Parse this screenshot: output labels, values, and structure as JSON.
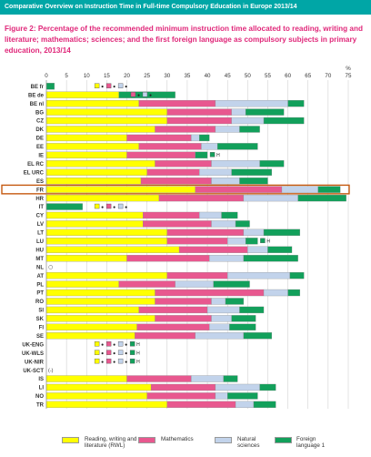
{
  "header": {
    "text": "Comparative Overview on Instruction Time in Full-time Compulsory Education in Europe 2013/14"
  },
  "title": "Figure 2: Percentage of the recommended minimum instruction time allocated to reading, writing and literature; mathematics; sciences; and the first foreign language as compulsory subjects in primary education, 2013/14",
  "chart_data": {
    "type": "bar",
    "stacked": true,
    "orientation": "horizontal",
    "x_unit": "%",
    "xlim": [
      0,
      75
    ],
    "x_ticks": [
      0,
      5,
      10,
      15,
      20,
      25,
      30,
      35,
      40,
      45,
      50,
      55,
      60,
      65,
      70,
      75
    ],
    "grid": true,
    "legend_position": "bottom",
    "series_names": [
      "Reading, writing and literature (RWL)",
      "Mathematics",
      "Natural sciences",
      "Foreign language 1"
    ],
    "colors": [
      "#ffff00",
      "#e8588f",
      "#c2d3eb",
      "#12a05b"
    ],
    "highlight": "FR",
    "rows": [
      {
        "country": "BE fr",
        "values": [
          0,
          0,
          0,
          2
        ],
        "note": ""
      },
      {
        "country": "BE de",
        "values": [
          18,
          0,
          0,
          14
        ],
        "note": "flex"
      },
      {
        "country": "BE nl",
        "values": [
          23,
          19,
          18,
          4
        ],
        "note": ""
      },
      {
        "country": "BG",
        "values": [
          30,
          16,
          3.5,
          9.5
        ],
        "note": ""
      },
      {
        "country": "CZ",
        "values": [
          30,
          16,
          8,
          10
        ],
        "note": ""
      },
      {
        "country": "DK",
        "values": [
          27,
          15,
          6,
          5
        ],
        "note": ""
      },
      {
        "country": "DE",
        "values": [
          20,
          16,
          2,
          2.5
        ],
        "note": ""
      },
      {
        "country": "EE",
        "values": [
          23,
          15.5,
          4,
          10
        ],
        "note": ""
      },
      {
        "country": "IE",
        "values": [
          20,
          17,
          0,
          3
        ],
        "note": "flex2"
      },
      {
        "country": "EL RC",
        "values": [
          27,
          14,
          12,
          6
        ],
        "note": ""
      },
      {
        "country": "EL URC",
        "values": [
          25,
          13,
          8,
          10
        ],
        "note": ""
      },
      {
        "country": "ES",
        "values": [
          23.5,
          17.5,
          7,
          7
        ],
        "note": ""
      },
      {
        "country": "FR",
        "values": [
          37,
          21.5,
          9,
          5.5
        ],
        "note": ""
      },
      {
        "country": "HR",
        "values": [
          28,
          21,
          13.5,
          12
        ],
        "note": ""
      },
      {
        "country": "IT",
        "values": [
          0,
          0,
          0,
          9
        ],
        "note": "flex"
      },
      {
        "country": "CY",
        "values": [
          24,
          14,
          5.5,
          4
        ],
        "note": ""
      },
      {
        "country": "LV",
        "values": [
          24,
          17,
          6,
          3.5
        ],
        "note": ""
      },
      {
        "country": "LT",
        "values": [
          30,
          19,
          5,
          9
        ],
        "note": ""
      },
      {
        "country": "LU",
        "values": [
          30,
          15,
          4.5,
          3
        ],
        "note": "flex2"
      },
      {
        "country": "HU",
        "values": [
          33,
          17,
          5,
          6
        ],
        "note": ""
      },
      {
        "country": "MT",
        "values": [
          20,
          20.5,
          8.5,
          13.5
        ],
        "note": ""
      },
      {
        "country": "NL",
        "values": [
          0,
          0,
          0,
          0
        ],
        "note": "circle"
      },
      {
        "country": "AT",
        "values": [
          30,
          15,
          15.5,
          3.5
        ],
        "note": ""
      },
      {
        "country": "PL",
        "values": [
          18,
          14,
          9.5,
          9
        ],
        "note": ""
      },
      {
        "country": "PT",
        "values": [
          27,
          27,
          6,
          3
        ],
        "note": ""
      },
      {
        "country": "RO",
        "values": [
          27,
          14,
          3.5,
          4.5
        ],
        "note": ""
      },
      {
        "country": "SI",
        "values": [
          23,
          17,
          8,
          6
        ],
        "note": ""
      },
      {
        "country": "SK",
        "values": [
          27,
          14,
          5,
          6
        ],
        "note": ""
      },
      {
        "country": "FI",
        "values": [
          22.5,
          18,
          5,
          6.5
        ],
        "note": ""
      },
      {
        "country": "SE",
        "values": [
          22,
          15,
          12,
          7
        ],
        "note": ""
      },
      {
        "country": "UK-ENG",
        "values": [
          0,
          0,
          0,
          0
        ],
        "note": "flex3"
      },
      {
        "country": "UK-WLS",
        "values": [
          0,
          0,
          0,
          0
        ],
        "note": "flex3"
      },
      {
        "country": "UK-NIR",
        "values": [
          0,
          0,
          0,
          0
        ],
        "note": "flex3"
      },
      {
        "country": "UK-SCT",
        "values": [
          0,
          0,
          0,
          0
        ],
        "note": "minus"
      },
      {
        "country": "IS",
        "values": [
          20,
          16,
          8,
          3.5
        ],
        "note": ""
      },
      {
        "country": "LI",
        "values": [
          26,
          16,
          11,
          4
        ],
        "note": ""
      },
      {
        "country": "NO",
        "values": [
          25,
          17,
          3,
          7.5
        ],
        "note": ""
      },
      {
        "country": "TR",
        "values": [
          30,
          17,
          4.5,
          5.5
        ],
        "note": ""
      }
    ]
  },
  "flex_markers": {
    "dot": "●",
    "h": "H",
    "circle": "○",
    "minus": "(-)"
  },
  "legend": [
    {
      "label": "Reading, writing and literature (RWL)",
      "color": "#ffff00"
    },
    {
      "label": "Mathematics",
      "color": "#e8588f"
    },
    {
      "label": "Natural sciences",
      "color": "#c2d3eb"
    },
    {
      "label": "Foreign language 1",
      "color": "#12a05b"
    }
  ]
}
